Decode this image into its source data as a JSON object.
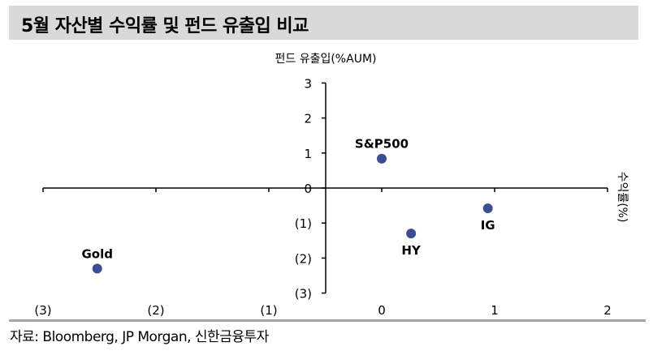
{
  "title": "5월 자산별 수익률 및 펀드 유출입 비교",
  "source": "자료: Bloomberg, JP Morgan, 신한금융투자",
  "colors": {
    "title_bg": "#d9d9d9",
    "marker": "#3b4d95",
    "axis": "#000000",
    "source_rule": "#a6a6a6"
  },
  "chart_data": {
    "type": "scatter",
    "title": "5월 자산별 수익률 및 펀드 유출입 비교",
    "xlabel": "수익률(%)",
    "ylabel": "펀드 유출입(%AUM)",
    "xlim": [
      -3,
      2
    ],
    "ylim": [
      -3,
      3
    ],
    "x_ticks": [
      -3,
      -2,
      -1,
      0,
      1,
      2
    ],
    "x_tick_labels": [
      "(3)",
      "(2)",
      "(1)",
      "0",
      "1",
      "2"
    ],
    "y_ticks": [
      3,
      2,
      1,
      0,
      -1,
      -2,
      -3
    ],
    "y_tick_labels": [
      "3",
      "2",
      "1",
      "0",
      "(1)",
      "(2)",
      "(3)"
    ],
    "grid": false,
    "legend": null,
    "points": [
      {
        "label": "S&P500",
        "x": 0.0,
        "y": 0.84,
        "label_pos": "above"
      },
      {
        "label": "HY",
        "x": 0.26,
        "y": -1.3,
        "label_pos": "below"
      },
      {
        "label": "IG",
        "x": 0.94,
        "y": -0.58,
        "label_pos": "below"
      },
      {
        "label": "Gold",
        "x": -2.52,
        "y": -2.3,
        "label_pos": "above"
      }
    ]
  }
}
